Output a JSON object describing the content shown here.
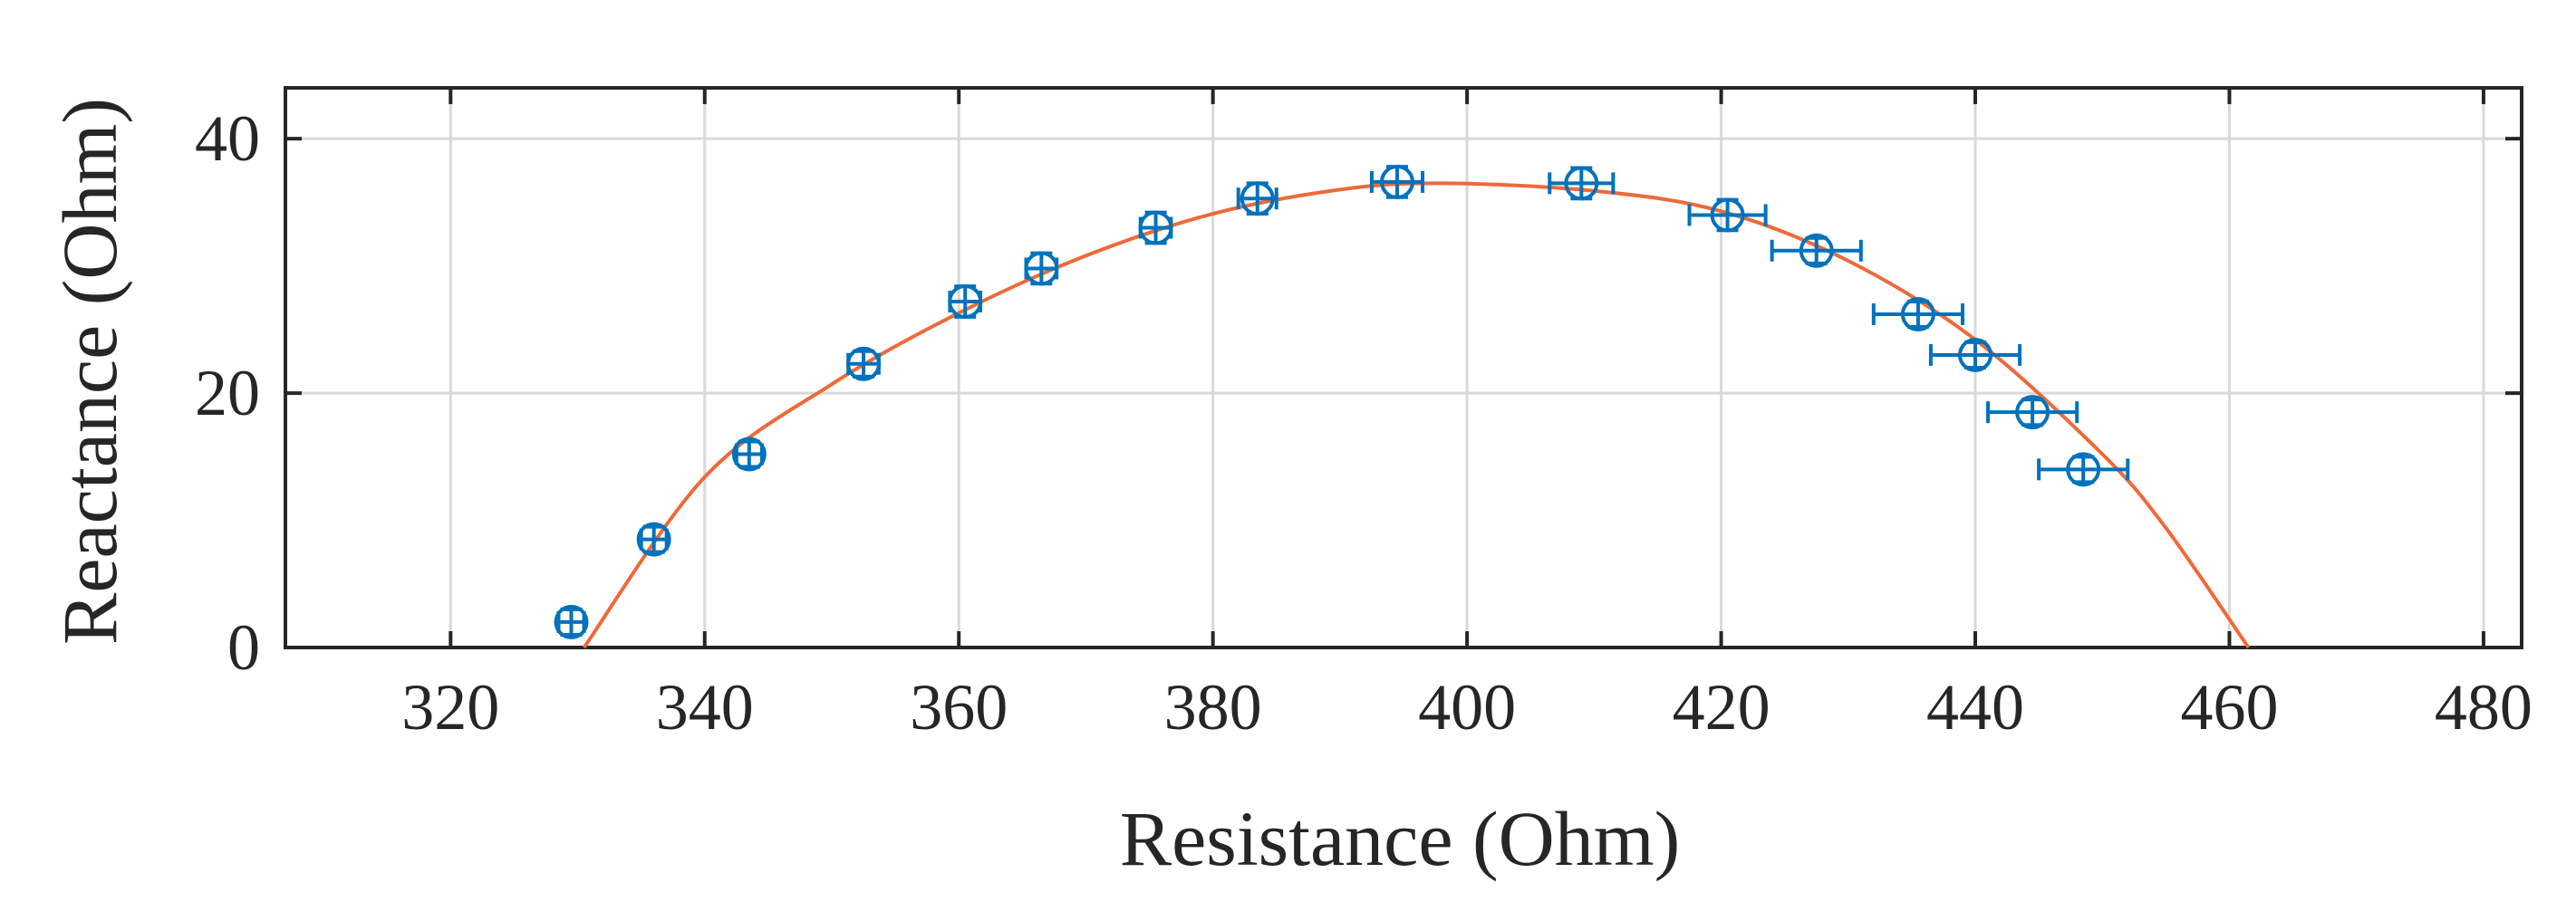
{
  "chart_data": {
    "type": "scatter",
    "title": "",
    "xlabel": "Resistance (Ohm)",
    "ylabel": "Reactance (Ohm)",
    "xlim": [
      307,
      483
    ],
    "ylim": [
      0,
      44
    ],
    "xticks": [
      320,
      340,
      360,
      380,
      400,
      420,
      440,
      460,
      480
    ],
    "yticks": [
      0,
      20,
      40
    ],
    "grid": true,
    "legend": "none",
    "colors": {
      "data": "#0072BD",
      "fit": "#ED6A3A",
      "axes": "#262626",
      "grid": "#D9D9D9"
    },
    "series": [
      {
        "type": "scatter_errorbar",
        "marker": "circle",
        "points": [
          {
            "x": 329.5,
            "y": 2.0,
            "x_err": 1.0,
            "y_err": 1.0
          },
          {
            "x": 336.0,
            "y": 8.5,
            "x_err": 1.0,
            "y_err": 1.0
          },
          {
            "x": 343.5,
            "y": 15.2,
            "x_err": 1.0,
            "y_err": 1.0
          },
          {
            "x": 352.5,
            "y": 22.3,
            "x_err": 1.2,
            "y_err": 1.0
          },
          {
            "x": 360.5,
            "y": 27.2,
            "x_err": 1.2,
            "y_err": 1.2
          },
          {
            "x": 366.5,
            "y": 29.8,
            "x_err": 1.2,
            "y_err": 1.2
          },
          {
            "x": 375.5,
            "y": 33.0,
            "x_err": 1.2,
            "y_err": 1.2
          },
          {
            "x": 383.5,
            "y": 35.3,
            "x_err": 1.5,
            "y_err": 1.2
          },
          {
            "x": 394.5,
            "y": 36.6,
            "x_err": 2.0,
            "y_err": 1.2
          },
          {
            "x": 409.0,
            "y": 36.5,
            "x_err": 2.5,
            "y_err": 1.2
          },
          {
            "x": 420.5,
            "y": 34.0,
            "x_err": 3.0,
            "y_err": 1.2
          },
          {
            "x": 427.5,
            "y": 31.2,
            "x_err": 3.5,
            "y_err": 1.0
          },
          {
            "x": 435.5,
            "y": 26.2,
            "x_err": 3.5,
            "y_err": 1.0
          },
          {
            "x": 440.0,
            "y": 23.0,
            "x_err": 3.5,
            "y_err": 1.0
          },
          {
            "x": 444.5,
            "y": 18.5,
            "x_err": 3.5,
            "y_err": 1.0
          },
          {
            "x": 448.5,
            "y": 14.0,
            "x_err": 3.5,
            "y_err": 1.0
          }
        ]
      },
      {
        "type": "line",
        "fit": "semicircle",
        "points": [
          {
            "x": 330.5,
            "y": 0
          },
          {
            "x": 340.0,
            "y": 13.4
          },
          {
            "x": 350.0,
            "y": 20.7
          },
          {
            "x": 360.0,
            "y": 26.3
          },
          {
            "x": 370.0,
            "y": 30.8
          },
          {
            "x": 380.0,
            "y": 34.1
          },
          {
            "x": 390.0,
            "y": 36.0
          },
          {
            "x": 398.0,
            "y": 36.5
          },
          {
            "x": 410.0,
            "y": 35.9
          },
          {
            "x": 420.0,
            "y": 34.3
          },
          {
            "x": 430.0,
            "y": 30.4
          },
          {
            "x": 440.0,
            "y": 24.2
          },
          {
            "x": 450.0,
            "y": 15.2
          },
          {
            "x": 455.0,
            "y": 9.4
          },
          {
            "x": 461.5,
            "y": 0
          }
        ]
      }
    ]
  }
}
